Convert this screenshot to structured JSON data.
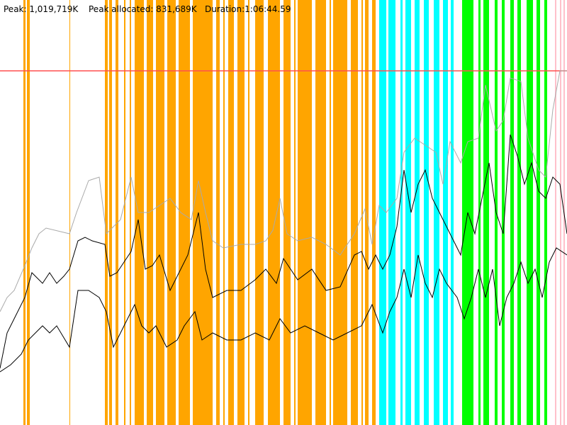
{
  "header": {
    "peak": "Peak: 1,019,719K",
    "peak_allocated": "Peak allocated: 831,689K",
    "duration": "Duration:1:06:44.59"
  }
}
